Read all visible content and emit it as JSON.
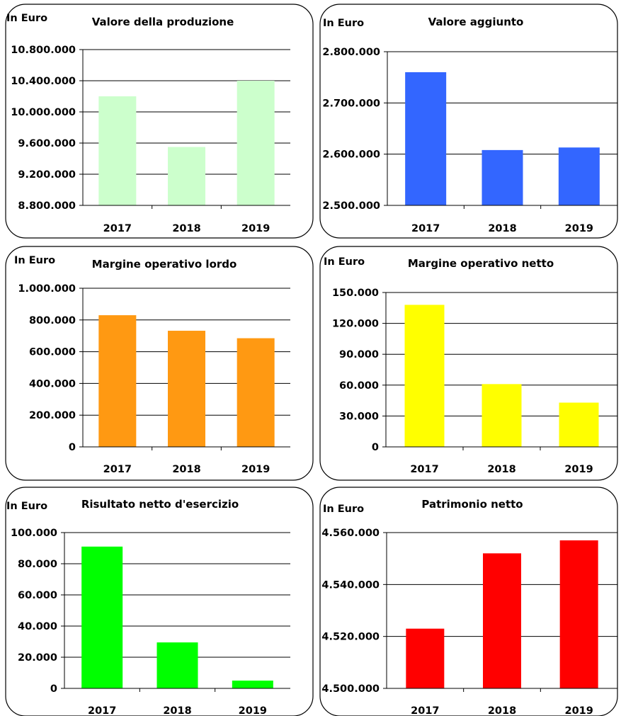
{
  "chart_data": [
    {
      "type": "bar",
      "title": "Valore della produzione",
      "unit_label": "In Euro",
      "categories": [
        "2017",
        "2018",
        "2019"
      ],
      "values": [
        10200000,
        9550000,
        10400000
      ],
      "ylim": [
        8800000,
        10800000
      ],
      "ticks": [
        8800000,
        9200000,
        9600000,
        10000000,
        10400000,
        10800000
      ],
      "tick_labels": [
        "8.800.000",
        "9.200.000",
        "9.600.000",
        "10.000.000",
        "10.400.000",
        "10.800.000"
      ],
      "color": "#ccffcc",
      "grid": true
    },
    {
      "type": "bar",
      "title": "Valore aggiunto",
      "unit_label": "In Euro",
      "categories": [
        "2017",
        "2018",
        "2019"
      ],
      "values": [
        2760000,
        2608000,
        2613000
      ],
      "ylim": [
        2500000,
        2800000
      ],
      "ticks": [
        2500000,
        2600000,
        2700000,
        2800000
      ],
      "tick_labels": [
        "2.500.000",
        "2.600.000",
        "2.700.000",
        "2.800.000"
      ],
      "color": "#3366ff",
      "grid": true
    },
    {
      "type": "bar",
      "title": "Margine operativo lordo",
      "unit_label": "In Euro",
      "categories": [
        "2017",
        "2018",
        "2019"
      ],
      "values": [
        830000,
        732000,
        685000
      ],
      "ylim": [
        0,
        1000000
      ],
      "ticks": [
        0,
        200000,
        400000,
        600000,
        800000,
        1000000
      ],
      "tick_labels": [
        "0",
        "200.000",
        "400.000",
        "600.000",
        "800.000",
        "1.000.000"
      ],
      "color": "#ff9912",
      "grid": true
    },
    {
      "type": "bar",
      "title": "Margine operativo netto",
      "unit_label": "In Euro",
      "categories": [
        "2017",
        "2018",
        "2019"
      ],
      "values": [
        138000,
        61000,
        43000
      ],
      "ylim": [
        0,
        150000
      ],
      "ticks": [
        0,
        30000,
        60000,
        90000,
        120000,
        150000
      ],
      "tick_labels": [
        "0",
        "30.000",
        "60.000",
        "90.000",
        "120.000",
        "150.000"
      ],
      "color": "#ffff00",
      "grid": true
    },
    {
      "type": "bar",
      "title": "Risultato netto d'esercizio",
      "unit_label": "In Euro",
      "categories": [
        "2017",
        "2018",
        "2019"
      ],
      "values": [
        91000,
        29500,
        5000
      ],
      "ylim": [
        0,
        100000
      ],
      "ticks": [
        0,
        20000,
        40000,
        60000,
        80000,
        100000
      ],
      "tick_labels": [
        "0",
        "20.000",
        "40.000",
        "60.000",
        "80.000",
        "100.000"
      ],
      "color": "#00ff00",
      "grid": true
    },
    {
      "type": "bar",
      "title": "Patrimonio netto",
      "unit_label": "In Euro",
      "categories": [
        "2017",
        "2018",
        "2019"
      ],
      "values": [
        4523000,
        4552000,
        4557000
      ],
      "ylim": [
        4500000,
        4560000
      ],
      "ticks": [
        4500000,
        4520000,
        4540000,
        4560000
      ],
      "tick_labels": [
        "4.500.000",
        "4.520.000",
        "4.540.000",
        "4.560.000"
      ],
      "color": "#ff0000",
      "grid": true
    }
  ]
}
